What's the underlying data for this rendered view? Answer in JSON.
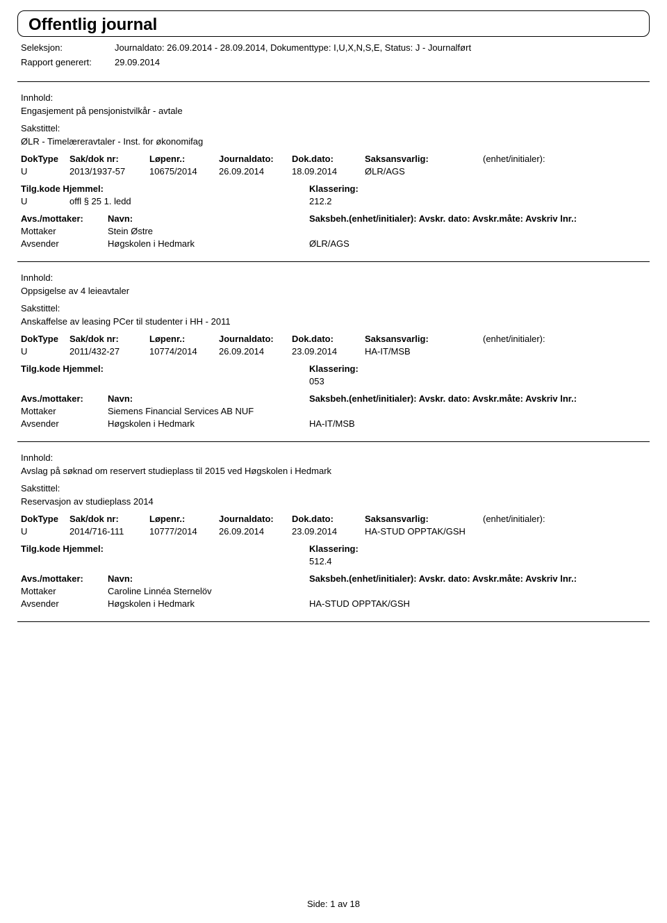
{
  "title": "Offentlig journal",
  "header": {
    "seleksjon_label": "Seleksjon:",
    "seleksjon_value": "Journaldato: 26.09.2014 - 28.09.2014, Dokumenttype: I,U,X,N,S,E, Status: J - Journalført",
    "rapport_label": "Rapport generert:",
    "rapport_value": "29.09.2014"
  },
  "labels": {
    "innhold": "Innhold:",
    "sakstittel": "Sakstittel:",
    "doktype": "DokType",
    "sakdok": "Sak/dok nr:",
    "lopenr": "Løpenr.:",
    "journaldato": "Journaldato:",
    "dokdato": "Dok.dato:",
    "saksansvarlig": "Saksansvarlig:",
    "enhet": "(enhet/initialer):",
    "tilgkode": "Tilg.kode",
    "hjemmel": "Hjemmel:",
    "klassering": "Klassering:",
    "avsmottaker": "Avs./mottaker:",
    "navn": "Navn:",
    "saksbeh": "Saksbeh.(enhet/initialer): Avskr. dato: Avskr.måte: Avskriv lnr.:",
    "mottaker": "Mottaker",
    "avsender": "Avsender"
  },
  "entries": [
    {
      "innhold": "Engasjement på pensjonistvilkår - avtale",
      "sakstittel": "ØLR - Timelæreravtaler - Inst. for økonomifag",
      "doktype": "U",
      "sakdok": "2013/1937-57",
      "lopenr": "10675/2014",
      "journaldato": "26.09.2014",
      "dokdato": "18.09.2014",
      "saksansvarlig": "ØLR/AGS",
      "tilgkode": "U",
      "hjemmel": "offl § 25 1. ledd",
      "klassering": "212.2",
      "mottaker_navn": "Stein Østre",
      "avsender_navn": "Høgskolen i Hedmark",
      "avsender_enhet": "ØLR/AGS"
    },
    {
      "innhold": "Oppsigelse av 4 leieavtaler",
      "sakstittel": "Anskaffelse av leasing PCer til studenter i HH - 2011",
      "doktype": "U",
      "sakdok": "2011/432-27",
      "lopenr": "10774/2014",
      "journaldato": "26.09.2014",
      "dokdato": "23.09.2014",
      "saksansvarlig": "HA-IT/MSB",
      "tilgkode": "",
      "hjemmel": "",
      "klassering": "053",
      "mottaker_navn": "Siemens Financial Services AB NUF",
      "avsender_navn": "Høgskolen i Hedmark",
      "avsender_enhet": "HA-IT/MSB"
    },
    {
      "innhold": "Avslag på søknad om reservert studieplass til 2015 ved Høgskolen i Hedmark",
      "sakstittel": "Reservasjon av studieplass 2014",
      "doktype": "U",
      "sakdok": "2014/716-111",
      "lopenr": "10777/2014",
      "journaldato": "26.09.2014",
      "dokdato": "23.09.2014",
      "saksansvarlig": "HA-STUD OPPTAK/GSH",
      "tilgkode": "",
      "hjemmel": "",
      "klassering": "512.4",
      "mottaker_navn": "Caroline Linnéa Sternelöv",
      "avsender_navn": "Høgskolen i Hedmark",
      "avsender_enhet": "HA-STUD OPPTAK/GSH"
    }
  ],
  "footer": {
    "side_label": "Side:",
    "current": "1",
    "av": "av",
    "total": "18"
  }
}
